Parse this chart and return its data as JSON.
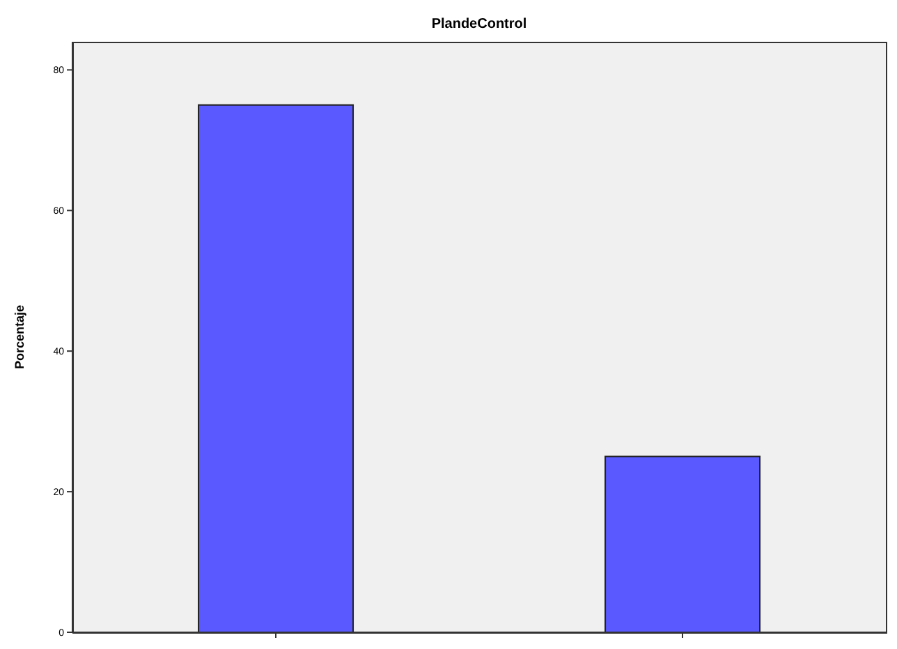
{
  "chart_data": {
    "type": "bar",
    "title": "PlandeControl",
    "ylabel": "Porcentaje",
    "categories": [
      null,
      null
    ],
    "values": [
      75,
      25
    ],
    "color": "#5959ff",
    "ylim": [
      0,
      84
    ],
    "yticks": [
      0,
      20,
      40,
      60,
      80
    ]
  }
}
